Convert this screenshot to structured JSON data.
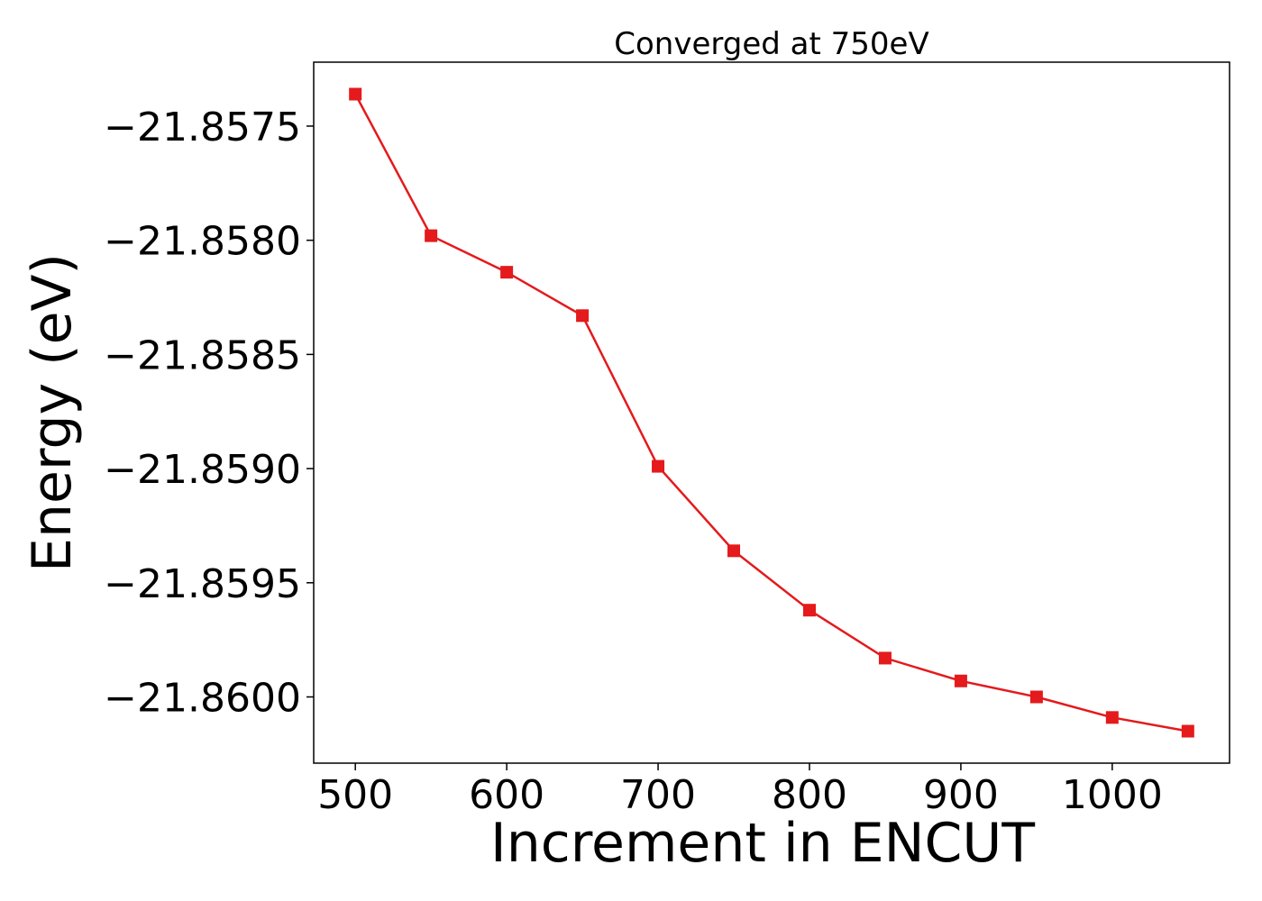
{
  "chart_data": {
    "type": "line",
    "title": "Converged at 750eV",
    "xlabel": "Increment in ENCUT",
    "ylabel": "Energy (eV)",
    "x": [
      500,
      550,
      600,
      650,
      700,
      750,
      800,
      850,
      900,
      950,
      1000,
      1050
    ],
    "series": [
      {
        "values": [
          -21.85736,
          -21.85798,
          -21.85814,
          -21.85833,
          -21.85899,
          -21.85936,
          -21.85962,
          -21.85983,
          -21.85993,
          -21.86,
          -21.86009,
          -21.86015
        ],
        "color": "#e41a1c",
        "marker": "square"
      }
    ],
    "xlim": [
      472.5,
      1077.5
    ],
    "ylim": [
      -21.86029,
      -21.85722
    ],
    "xticks": [
      500,
      600,
      700,
      800,
      900,
      1000
    ],
    "xtick_labels": [
      "500",
      "600",
      "700",
      "800",
      "900",
      "1000"
    ],
    "yticks": [
      -21.8575,
      -21.858,
      -21.8585,
      -21.859,
      -21.8595,
      -21.86
    ],
    "ytick_labels": [
      "−21.8575",
      "−21.8580",
      "−21.8585",
      "−21.8590",
      "−21.8595",
      "−21.8600"
    ],
    "grid": false,
    "legend": false
  }
}
